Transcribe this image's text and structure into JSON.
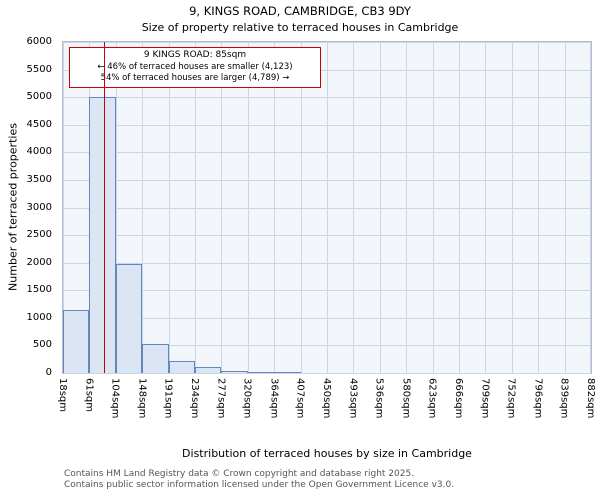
{
  "chart_data": {
    "type": "bar",
    "title": "9, KINGS ROAD, CAMBRIDGE, CB3 9DY",
    "subtitle": "Size of property relative to terraced houses in Cambridge",
    "xlabel": "Distribution of terraced houses by size in Cambridge",
    "ylabel": "Number of terraced properties",
    "categories": [
      "18sqm",
      "61sqm",
      "104sqm",
      "148sqm",
      "191sqm",
      "234sqm",
      "277sqm",
      "320sqm",
      "364sqm",
      "407sqm",
      "450sqm",
      "493sqm",
      "536sqm",
      "580sqm",
      "623sqm",
      "666sqm",
      "709sqm",
      "752sqm",
      "796sqm",
      "839sqm",
      "882sqm"
    ],
    "bin_edges": [
      18,
      61,
      104,
      148,
      191,
      234,
      277,
      320,
      364,
      407,
      450,
      493,
      536,
      580,
      623,
      666,
      709,
      752,
      796,
      839,
      882
    ],
    "values": [
      1150,
      5000,
      1975,
      520,
      210,
      100,
      40,
      25,
      10,
      0,
      0,
      0,
      0,
      0,
      0,
      0,
      0,
      0,
      0,
      0
    ],
    "ylim": [
      0,
      6000
    ],
    "ytick_step": 500,
    "grid": true,
    "marker_value": 85,
    "annotation": {
      "line1": "9 KINGS ROAD: 85sqm",
      "line2": "← 46% of terraced houses are smaller (4,123)",
      "line3": "54% of terraced houses are larger (4,789) →"
    },
    "colors": {
      "bar_fill": "#dbe5f3",
      "bar_edge": "#6388bb",
      "marker_line": "#cc0000",
      "grid": "#c9d5ea",
      "plot_bg": "#f2f5fa"
    }
  },
  "footer": {
    "line1": "Contains HM Land Registry data © Crown copyright and database right 2025.",
    "line2": "Contains public sector information licensed under the Open Government Licence v3.0."
  }
}
